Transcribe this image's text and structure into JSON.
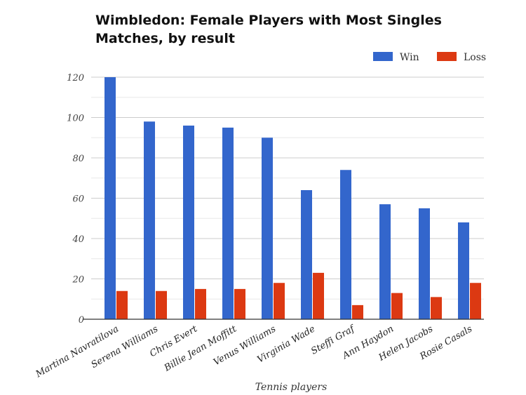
{
  "chart_data": {
    "type": "bar",
    "title": "Wimbledon: Female Players with Most Singles Matches, by result",
    "xlabel": "Tennis players",
    "ylabel": "",
    "ylim": [
      0,
      120
    ],
    "yticks": [
      0,
      20,
      40,
      60,
      80,
      100,
      120
    ],
    "grid": true,
    "legend_position": "top-right",
    "categories": [
      "Martina Navratilova",
      "Serena Williams",
      "Chris Evert",
      "Billie Jean Moffitt",
      "Venus Williams",
      "Virginia Wade",
      "Steffi Graf",
      "Ann Haydon",
      "Helen Jacobs",
      "Rosie Casals"
    ],
    "series": [
      {
        "name": "Win",
        "color": "#3366cc",
        "values": [
          120,
          98,
          96,
          95,
          90,
          64,
          74,
          57,
          55,
          48
        ]
      },
      {
        "name": "Loss",
        "color": "#dc3912",
        "values": [
          14,
          14,
          15,
          15,
          18,
          23,
          7,
          13,
          11,
          18
        ]
      }
    ]
  }
}
